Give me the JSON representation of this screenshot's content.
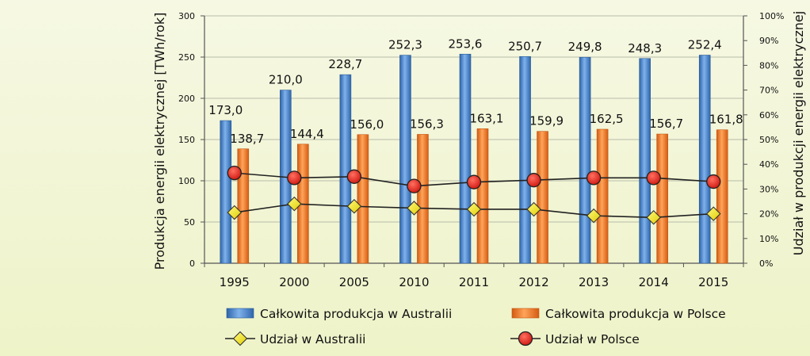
{
  "chart_data": {
    "type": "bar",
    "title": "",
    "categories": [
      "1995",
      "2000",
      "2005",
      "2010",
      "2011",
      "2012",
      "2013",
      "2014",
      "2015"
    ],
    "ylabel": "Produkcja energii elektrycznej [TWh/rok]",
    "y2label": "Udział w produkcji energii elektrycznej",
    "ylim": [
      0,
      300
    ],
    "yticks": [
      "0",
      "50",
      "100",
      "150",
      "200",
      "250",
      "300"
    ],
    "y2lim": [
      0,
      100
    ],
    "y2ticks": [
      "0%",
      "10%",
      "20%",
      "30%",
      "40%",
      "50%",
      "60%",
      "70%",
      "80%",
      "90%",
      "100%"
    ],
    "grid": true,
    "legend_position": "bottom",
    "series": [
      {
        "name": "Całkowita produkcja w Australii",
        "kind": "bar",
        "axis": "left",
        "color": "#4d88d1",
        "values": [
          173.0,
          210.0,
          228.7,
          252.3,
          253.6,
          250.7,
          249.8,
          248.3,
          252.4
        ],
        "labels": [
          "173,0",
          "210,0",
          "228,7",
          "252,3",
          "253,6",
          "250,7",
          "249,8",
          "248,3",
          "252,4"
        ]
      },
      {
        "name": "Całkowita produkcja w Polsce",
        "kind": "bar",
        "axis": "left",
        "color": "#f07a2a",
        "values": [
          138.7,
          144.4,
          156.0,
          156.3,
          163.1,
          159.9,
          162.5,
          156.7,
          161.8
        ],
        "labels": [
          "138,7",
          "144,4",
          "156,0",
          "156,3",
          "163,1",
          "159,9",
          "162,5",
          "156,7",
          "161,8"
        ]
      },
      {
        "name": "Udział w Australii",
        "kind": "line",
        "axis": "right",
        "marker": "diamond",
        "color": "#f2e500",
        "values": [
          20.5,
          24.0,
          23.0,
          22.3,
          21.8,
          21.8,
          19.2,
          18.5,
          20.0
        ]
      },
      {
        "name": "Udział w Polsce",
        "kind": "line",
        "axis": "right",
        "marker": "circle",
        "color": "#e0201b",
        "values": [
          36.5,
          34.5,
          35.0,
          31.2,
          32.8,
          33.6,
          34.5,
          34.5,
          33.0
        ]
      }
    ]
  }
}
